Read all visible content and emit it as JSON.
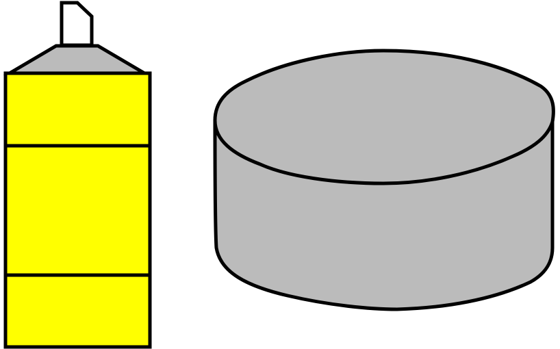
{
  "colors": {
    "background": "#ffffff",
    "outline": "#000000",
    "can_body": "#ffff00",
    "can_shoulder": "#bbbbbb",
    "nozzle": "#ffffff",
    "disc": "#bbbbbb"
  },
  "objects": [
    {
      "name": "spray-can",
      "parts": [
        "nozzle",
        "shoulder",
        "body",
        "band-top",
        "band-bottom"
      ]
    },
    {
      "name": "puck-disc",
      "parts": [
        "top-face",
        "side-wall"
      ]
    }
  ]
}
